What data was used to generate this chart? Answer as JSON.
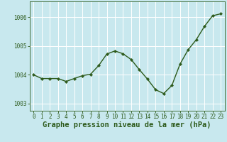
{
  "x": [
    0,
    1,
    2,
    3,
    4,
    5,
    6,
    7,
    8,
    9,
    10,
    11,
    12,
    13,
    14,
    15,
    16,
    17,
    18,
    19,
    20,
    21,
    22,
    23
  ],
  "y": [
    1004.0,
    1003.87,
    1003.87,
    1003.87,
    1003.77,
    1003.87,
    1003.97,
    1004.02,
    1004.32,
    1004.72,
    1004.83,
    1004.73,
    1004.53,
    1004.18,
    1003.85,
    1003.48,
    1003.35,
    1003.63,
    1004.37,
    1004.87,
    1005.22,
    1005.68,
    1006.05,
    1006.12
  ],
  "line_color": "#2d5a1b",
  "marker": "D",
  "marker_size": 2.2,
  "linewidth": 1.0,
  "bg_color": "#c8e8ee",
  "plot_bg_color": "#c8e8ee",
  "grid_color": "#ffffff",
  "xlabel": "Graphe pression niveau de la mer (hPa)",
  "xlabel_color": "#2d5a1b",
  "xlabel_fontsize": 7.5,
  "tick_color": "#2d5a1b",
  "tick_fontsize": 5.5,
  "ylim": [
    1002.75,
    1006.55
  ],
  "yticks": [
    1003,
    1004,
    1005,
    1006
  ],
  "xlim": [
    -0.5,
    23.5
  ],
  "xticks": [
    0,
    1,
    2,
    3,
    4,
    5,
    6,
    7,
    8,
    9,
    10,
    11,
    12,
    13,
    14,
    15,
    16,
    17,
    18,
    19,
    20,
    21,
    22,
    23
  ]
}
